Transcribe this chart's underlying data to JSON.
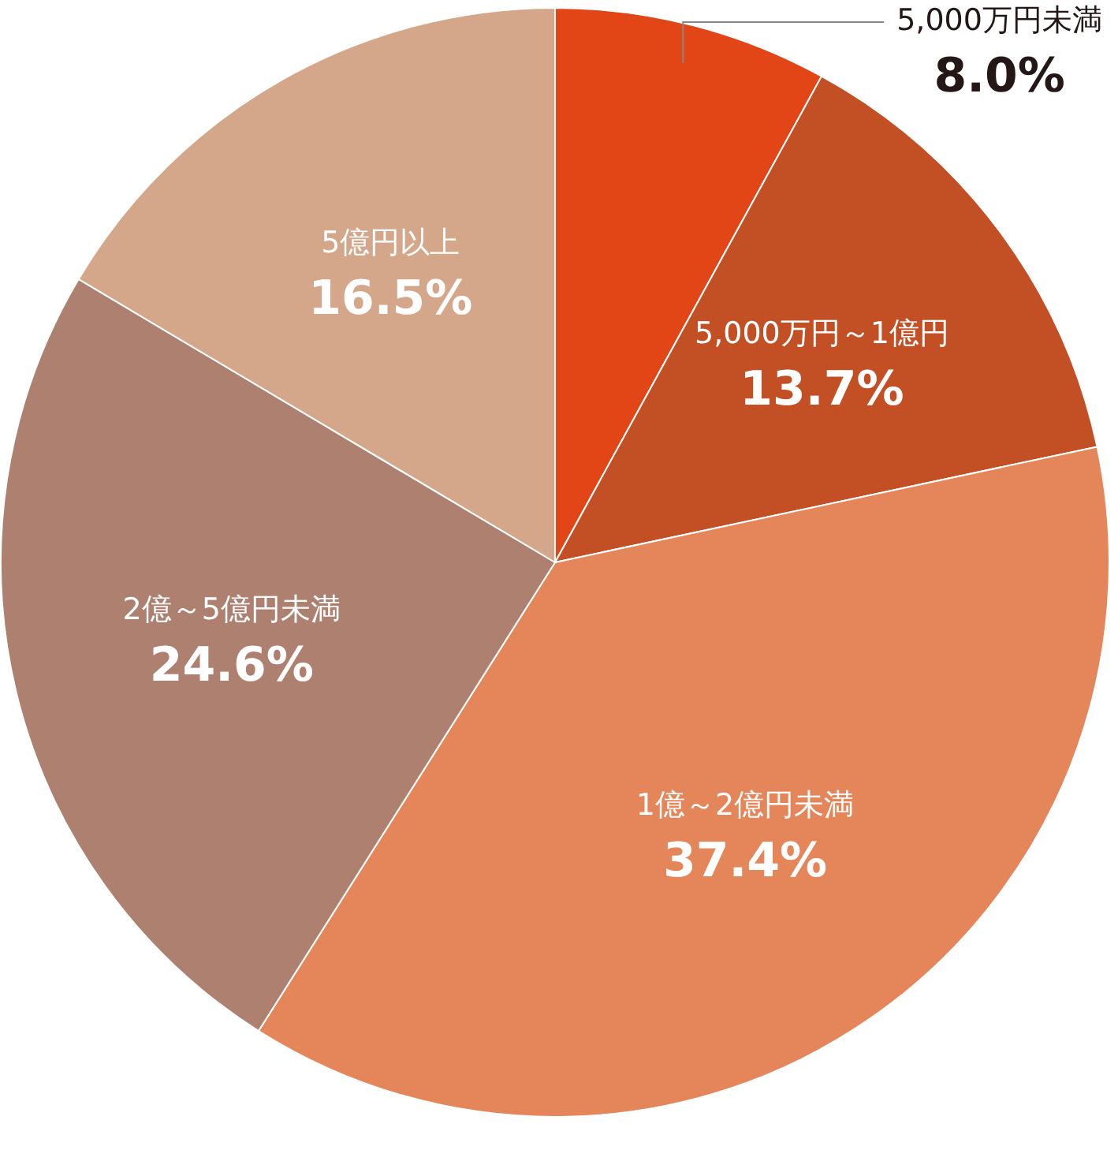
{
  "chart_data": {
    "type": "pie",
    "categories": [
      "5,000万円未満",
      "5,000万円～1億円",
      "1億～2億円未満",
      "2億～5億円未満",
      "5億円以上"
    ],
    "values": [
      8.0,
      13.7,
      37.4,
      24.6,
      16.5
    ],
    "value_labels": [
      "8.0%",
      "13.7%",
      "37.4%",
      "24.6%",
      "16.5%"
    ],
    "colors": [
      "#e24617",
      "#c25024",
      "#e5865a",
      "#ae8070",
      "#d4a68a"
    ],
    "legend": false
  }
}
